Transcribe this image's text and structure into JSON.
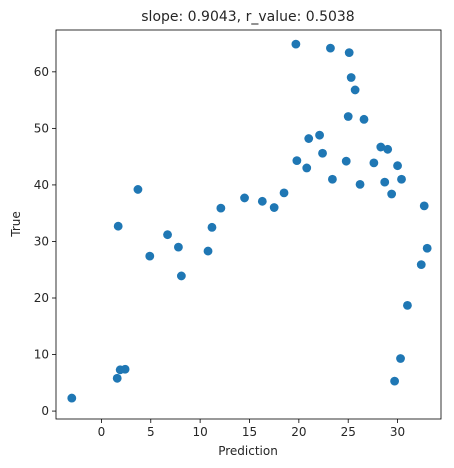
{
  "chart_data": {
    "type": "scatter",
    "title": "slope: 0.9043, r_value: 0.5038",
    "xlabel": "Prediction",
    "ylabel": "True",
    "xlim": [
      -4.6,
      34.4
    ],
    "ylim": [
      -1.4,
      67.4
    ],
    "xticks": [
      0,
      5,
      10,
      15,
      20,
      25,
      30
    ],
    "yticks": [
      0,
      10,
      20,
      30,
      40,
      50,
      60
    ],
    "grid": false,
    "marker_color": "#1f77b4",
    "series": [
      {
        "points": [
          [
            -3.0,
            2.3
          ],
          [
            1.7,
            32.7
          ],
          [
            3.7,
            39.2
          ],
          [
            4.9,
            27.4
          ],
          [
            6.7,
            31.2
          ],
          [
            19.7,
            64.9
          ],
          [
            23.2,
            64.2
          ],
          [
            25.1,
            63.4
          ],
          [
            25.3,
            59.0
          ],
          [
            25.7,
            56.8
          ],
          [
            25.0,
            52.1
          ],
          [
            26.6,
            51.6
          ],
          [
            22.1,
            48.8
          ],
          [
            21.0,
            48.2
          ],
          [
            28.3,
            46.7
          ],
          [
            29.0,
            46.3
          ],
          [
            19.8,
            44.3
          ],
          [
            30.0,
            43.4
          ],
          [
            32.7,
            36.3
          ],
          [
            33.0,
            28.8
          ],
          [
            32.4,
            25.9
          ],
          [
            31.0,
            18.7
          ],
          [
            30.3,
            9.3
          ],
          [
            29.7,
            5.3
          ],
          [
            1.6,
            5.8
          ],
          [
            1.9,
            7.3
          ],
          [
            2.4,
            7.4
          ],
          [
            7.8,
            29.0
          ],
          [
            8.1,
            23.9
          ],
          [
            10.8,
            28.3
          ],
          [
            11.2,
            32.5
          ],
          [
            12.1,
            35.9
          ],
          [
            14.5,
            37.7
          ],
          [
            16.3,
            37.1
          ],
          [
            17.5,
            36.0
          ],
          [
            22.4,
            45.6
          ],
          [
            18.5,
            38.6
          ],
          [
            20.8,
            43.0
          ],
          [
            24.8,
            44.2
          ],
          [
            27.6,
            43.9
          ],
          [
            23.4,
            41.0
          ],
          [
            26.2,
            40.1
          ],
          [
            28.7,
            40.5
          ],
          [
            29.4,
            38.4
          ],
          [
            30.4,
            41.0
          ]
        ]
      }
    ]
  }
}
